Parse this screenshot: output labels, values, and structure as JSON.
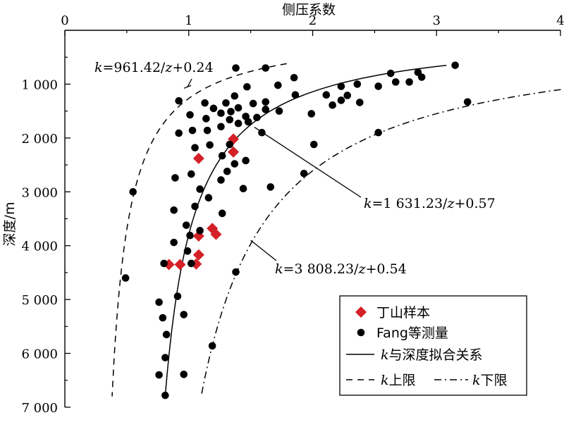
{
  "chart_data": {
    "type": "scatter",
    "title": "",
    "xlabel": "侧压系数",
    "ylabel": "深度/m",
    "x_axis_position": "top",
    "y_axis_inverted": true,
    "xlim": [
      0,
      4
    ],
    "ylim": [
      0,
      7000
    ],
    "x_ticks": [
      0,
      1,
      2,
      3,
      4
    ],
    "x_tick_labels": [
      "0",
      "1",
      "2",
      "3",
      "4"
    ],
    "y_ticks": [
      1000,
      2000,
      3000,
      4000,
      5000,
      6000,
      7000
    ],
    "y_tick_labels": [
      "1 000",
      "2 000",
      "3 000",
      "4 000",
      "5 000",
      "6 000",
      "7 000"
    ],
    "grid": false,
    "legend_position": "bottom-right",
    "series": [
      {
        "name": "丁山样本",
        "marker": "diamond",
        "color": "#d42027",
        "points": [
          [
            1.08,
            2380
          ],
          [
            1.36,
            2020
          ],
          [
            1.36,
            2260
          ],
          [
            1.08,
            3820
          ],
          [
            1.19,
            3680
          ],
          [
            1.22,
            3790
          ],
          [
            0.84,
            4350
          ],
          [
            0.93,
            4350
          ],
          [
            1.06,
            4340
          ],
          [
            1.08,
            4170
          ]
        ]
      },
      {
        "name": "Fang等测量",
        "marker": "circle",
        "color": "#000000",
        "points": [
          [
            3.15,
            650
          ],
          [
            2.85,
            780
          ],
          [
            2.63,
            800
          ],
          [
            2.88,
            870
          ],
          [
            2.78,
            960
          ],
          [
            2.67,
            960
          ],
          [
            2.53,
            1040
          ],
          [
            2.36,
            1000
          ],
          [
            2.23,
            1040
          ],
          [
            2.11,
            1200
          ],
          [
            2.23,
            1300
          ],
          [
            2.28,
            1210
          ],
          [
            2.38,
            1340
          ],
          [
            2.16,
            1390
          ],
          [
            1.99,
            1550
          ],
          [
            1.86,
            1200
          ],
          [
            1.73,
            1500
          ],
          [
            1.62,
            1470
          ],
          [
            1.55,
            1620
          ],
          [
            1.46,
            1600
          ],
          [
            1.48,
            1700
          ],
          [
            1.4,
            1730
          ],
          [
            1.33,
            1660
          ],
          [
            1.26,
            1790
          ],
          [
            1.15,
            1860
          ],
          [
            1.03,
            1860
          ],
          [
            1.34,
            1510
          ],
          [
            1.26,
            1540
          ],
          [
            1.14,
            1640
          ],
          [
            1.2,
            1450
          ],
          [
            1.3,
            1350
          ],
          [
            1.4,
            1440
          ],
          [
            1.52,
            1360
          ],
          [
            1.62,
            1330
          ],
          [
            1.85,
            880
          ],
          [
            1.72,
            1020
          ],
          [
            1.62,
            700
          ],
          [
            1.38,
            700
          ],
          [
            1.37,
            1220
          ],
          [
            1.47,
            1050
          ],
          [
            1.13,
            1350
          ],
          [
            0.92,
            1310
          ],
          [
            1.01,
            1570
          ],
          [
            0.92,
            1910
          ],
          [
            1.17,
            2130
          ],
          [
            1.05,
            2180
          ],
          [
            1.33,
            2120
          ],
          [
            1.27,
            2330
          ],
          [
            1.46,
            2420
          ],
          [
            1.37,
            2480
          ],
          [
            1.31,
            2620
          ],
          [
            1.02,
            2670
          ],
          [
            0.89,
            2740
          ],
          [
            1.09,
            2950
          ],
          [
            1.16,
            3110
          ],
          [
            1.26,
            2780
          ],
          [
            1.27,
            3400
          ],
          [
            1.44,
            2940
          ],
          [
            1.66,
            2910
          ],
          [
            1.59,
            1900
          ],
          [
            2.01,
            2120
          ],
          [
            1.93,
            2660
          ],
          [
            2.53,
            1900
          ],
          [
            3.25,
            1330
          ],
          [
            1.05,
            3270
          ],
          [
            0.88,
            3340
          ],
          [
            0.98,
            3620
          ],
          [
            1.01,
            3810
          ],
          [
            1.09,
            3720
          ],
          [
            0.88,
            3940
          ],
          [
            0.99,
            4100
          ],
          [
            1.02,
            4330
          ],
          [
            0.8,
            4330
          ],
          [
            0.49,
            4600
          ],
          [
            0.55,
            3000
          ],
          [
            0.91,
            4940
          ],
          [
            0.76,
            5050
          ],
          [
            0.96,
            5280
          ],
          [
            0.79,
            5340
          ],
          [
            0.82,
            5650
          ],
          [
            0.81,
            6080
          ],
          [
            0.76,
            6400
          ],
          [
            0.96,
            6390
          ],
          [
            0.81,
            6780
          ],
          [
            1.38,
            4490
          ],
          [
            1.19,
            5860
          ]
        ]
      },
      {
        "name": "k与深度拟合关系",
        "type": "line",
        "style": "solid",
        "formula": "k=1 631.23/z+0.57",
        "a": 1631.23,
        "b": 0.57,
        "z_range": [
          650,
          6750
        ]
      },
      {
        "name": "k上限",
        "type": "line",
        "style": "dashed",
        "formula": "k=961.42/z+0.24",
        "a": 961.42,
        "b": 0.24,
        "z_range": [
          620,
          6800
        ]
      },
      {
        "name": "k下限",
        "type": "line",
        "style": "dashdot",
        "formula": "k=3 808.23/z+0.54",
        "a": 3808.23,
        "b": 0.54,
        "z_range": [
          1100,
          6800
        ]
      }
    ],
    "annotations": [
      {
        "text": "k=961.42/z+0.24",
        "target_series": "k上限",
        "at": [
          0.99,
          1050
        ]
      },
      {
        "text": "k=1 631.23/z+0.57",
        "target_series": "k与深度拟合关系",
        "at": [
          1.53,
          1800
        ]
      },
      {
        "text": "k=3 808.23/z+0.54",
        "target_series": "k下限",
        "at": [
          1.5,
          3900
        ]
      }
    ]
  }
}
